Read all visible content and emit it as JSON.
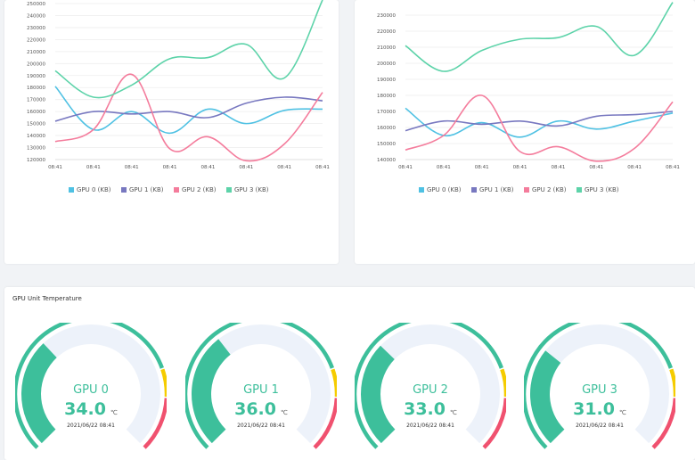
{
  "chart_data": [
    {
      "type": "line",
      "categories": [
        "08:41",
        "08:41",
        "08:41",
        "08:41",
        "08:41",
        "08:41",
        "08:41",
        "08:41"
      ],
      "ylim": [
        120000,
        250000
      ],
      "yticks": [
        120000,
        130000,
        140000,
        150000,
        160000,
        170000,
        180000,
        190000,
        200000,
        210000,
        220000,
        230000,
        240000,
        250000
      ],
      "tick_labels_y": [
        "120000",
        "130000",
        "140000",
        "150000",
        "160000",
        "170000",
        "180000",
        "190000",
        "200000",
        "210000",
        "220000",
        "230000",
        "240000",
        "250000"
      ],
      "series": [
        {
          "name": "GPU 0 (KB)",
          "color": "#4fc1e3",
          "values": [
            181000,
            145000,
            160000,
            142000,
            162000,
            150000,
            161000,
            162000
          ]
        },
        {
          "name": "GPU 1 (KB)",
          "color": "#7878c0",
          "values": [
            152000,
            160000,
            158000,
            160000,
            155000,
            167000,
            172000,
            169000
          ]
        },
        {
          "name": "GPU 2 (KB)",
          "color": "#f47c9c",
          "values": [
            135000,
            145000,
            191000,
            129000,
            139000,
            119000,
            133000,
            176000
          ]
        },
        {
          "name": "GPU 3 (KB)",
          "color": "#5dd3a9",
          "values": [
            194000,
            172000,
            182000,
            204000,
            205000,
            216000,
            188000,
            253000
          ]
        }
      ]
    },
    {
      "type": "line",
      "categories": [
        "08:41",
        "08:41",
        "08:41",
        "08:41",
        "08:41",
        "08:41",
        "08:41",
        "08:41"
      ],
      "ylim": [
        140000,
        240000
      ],
      "yticks": [
        140000,
        150000,
        160000,
        170000,
        180000,
        190000,
        200000,
        210000,
        220000,
        230000
      ],
      "tick_labels_y": [
        "140000",
        "150000",
        "160000",
        "170000",
        "180000",
        "190000",
        "200000",
        "210000",
        "220000",
        "230000"
      ],
      "series": [
        {
          "name": "GPU 0 (KB)",
          "color": "#4fc1e3",
          "values": [
            172000,
            155000,
            163000,
            154000,
            164000,
            159000,
            164000,
            169000
          ]
        },
        {
          "name": "GPU 1 (KB)",
          "color": "#7878c0",
          "values": [
            158000,
            164000,
            162000,
            164000,
            161000,
            167000,
            168000,
            170000
          ]
        },
        {
          "name": "GPU 2 (KB)",
          "color": "#f47c9c",
          "values": [
            146000,
            155000,
            180000,
            145000,
            148000,
            139000,
            147000,
            176000
          ]
        },
        {
          "name": "GPU 3 (KB)",
          "color": "#5dd3a9",
          "values": [
            211000,
            195000,
            208000,
            215000,
            216000,
            223000,
            205000,
            238000
          ]
        }
      ]
    }
  ],
  "temperature": {
    "title": "GPU Unit Temperature",
    "unit": "℃",
    "gauge_max": 100,
    "colors": {
      "fill": "#3dbf9b",
      "track": "#edf2fa",
      "safe": "#3dbf9b",
      "warn": "#f5cc00",
      "danger": "#f0516f"
    },
    "gauges": [
      {
        "name": "GPU 0",
        "value": "34.0",
        "level": 34,
        "time": "2021/06/22 08:41"
      },
      {
        "name": "GPU 1",
        "value": "36.0",
        "level": 36,
        "time": "2021/06/22 08:41"
      },
      {
        "name": "GPU 2",
        "value": "33.0",
        "level": 33,
        "time": "2021/06/22 08:41"
      },
      {
        "name": "GPU 3",
        "value": "31.0",
        "level": 31,
        "time": "2021/06/22 08:41"
      }
    ]
  }
}
